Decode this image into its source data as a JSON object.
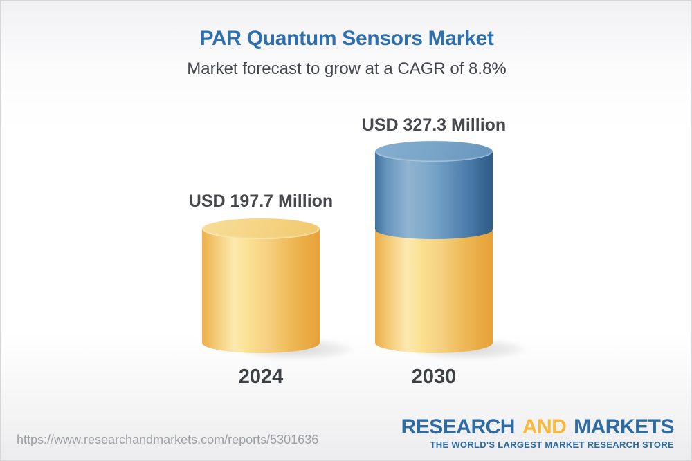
{
  "chart_data": {
    "type": "bar",
    "style": "3d-cylinder",
    "title": "PAR Quantum Sensors Market",
    "subtitle": "Market forecast to grow at a CAGR of 8.8%",
    "cagr_percent": 8.8,
    "unit": "USD Million",
    "categories": [
      "2024",
      "2030"
    ],
    "values": [
      197.7,
      327.3
    ],
    "value_labels": [
      "USD 197.7 Million",
      "USD 327.3 Million"
    ],
    "series_note": "2030 bar shows 2024 base in yellow with incremental growth stacked in blue",
    "legend": "none",
    "axes": "none",
    "bar_colors": {
      "base_yellow": "#f3c76f",
      "growth_blue": "#5d8cb5"
    }
  },
  "footer": {
    "url": "https://www.researchandmarkets.com/reports/5301636",
    "logo": {
      "research": "RESEARCH",
      "and": "AND",
      "markets": "MARKETS",
      "tagline": "THE WORLD'S LARGEST MARKET RESEARCH STORE"
    }
  },
  "colors": {
    "title_blue": "#2d70ad",
    "subtitle_gray": "#43464b",
    "label_dark": "#46484c",
    "url_gray": "#9b9ea3",
    "logo_blue": "#2d6ba2",
    "logo_gold": "#f5b93e"
  }
}
